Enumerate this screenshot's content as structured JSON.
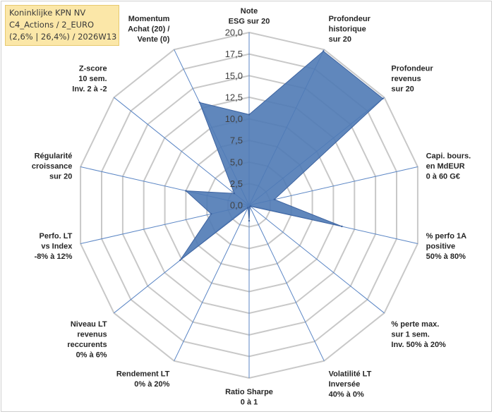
{
  "info": {
    "line1": "Koninklijke KPN NV",
    "line2": "C4_Actions / 2_EURO",
    "line3": "(2,6% | 26,4%) / 2026W13"
  },
  "colors": {
    "fill": "#4f7ab5",
    "stroke": "#3d63a0",
    "grid": "#c8c8c8",
    "spoke": "#5b86c5",
    "info_bg": "#fbe7a8"
  },
  "chart_data": {
    "type": "radar",
    "title": "",
    "rmin": 0,
    "rmax": 20,
    "ticks": [
      "0,0",
      "2,5",
      "5,0",
      "7,5",
      "10,0",
      "12,5",
      "15,0",
      "17,5",
      "20,0"
    ],
    "tick_values": [
      0,
      2.5,
      5,
      7.5,
      10,
      12.5,
      15,
      17.5,
      20
    ],
    "axes": [
      {
        "lines": [
          "Note",
          "ESG sur 20"
        ]
      },
      {
        "lines": [
          "Profondeur",
          "historique",
          "sur 20"
        ]
      },
      {
        "lines": [
          "Profondeur",
          "revenus",
          "sur 20"
        ]
      },
      {
        "lines": [
          "Capi. bours.",
          "en MdEUR",
          "0 à 60 G€"
        ]
      },
      {
        "lines": [
          "% perfo 1A",
          "positive",
          "50% à 80%"
        ]
      },
      {
        "lines": [
          "% perte max.",
          "sur 1 sem.",
          "Inv. 50% à 20%"
        ]
      },
      {
        "lines": [
          "Volatilité LT",
          "Inversée",
          "40% à 0%"
        ]
      },
      {
        "lines": [
          "Ratio Sharpe",
          "0 à 1"
        ]
      },
      {
        "lines": [
          "Rendement LT",
          "0% à 20%"
        ]
      },
      {
        "lines": [
          "Niveau LT",
          "revenus",
          "reccurents",
          "0% à 6%"
        ]
      },
      {
        "lines": [
          "Perfo. LT",
          "vs Index",
          "-8% à 12%"
        ]
      },
      {
        "lines": [
          "Régularité",
          "croissance",
          "sur 20"
        ]
      },
      {
        "lines": [
          "Z-score",
          "10 sem.",
          "Inv. 2 à -2"
        ]
      },
      {
        "lines": [
          "Momentum",
          "Achat (20) /",
          "Vente (0)"
        ]
      }
    ],
    "series": [
      {
        "name": "Koninklijke KPN NV",
        "values": [
          10.5,
          19.8,
          19.8,
          3.0,
          11.0,
          0.2,
          0.2,
          1.8,
          0.3,
          10.2,
          4.5,
          7.5,
          2.2,
          13.2
        ]
      }
    ]
  }
}
